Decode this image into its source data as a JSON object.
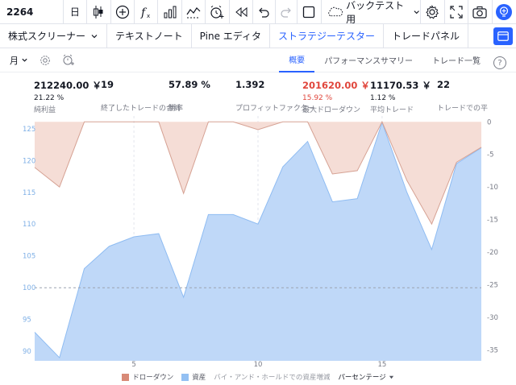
{
  "toolbar": {
    "symbol": "2264",
    "interval": "日",
    "backtest_label": "バックテスト用",
    "icons": [
      "candles-icon",
      "plus-circle-icon",
      "function-icon",
      "bar-chart-icon",
      "indicator-chart-icon",
      "alarm-plus-icon",
      "rewind-icon",
      "undo-icon",
      "redo-icon",
      "rectangle-icon",
      "cloud-icon",
      "gear-icon",
      "fullscreen-icon",
      "camera-icon",
      "lightbulb-icon"
    ]
  },
  "tabs": [
    {
      "label": "株式スクリーナー"
    },
    {
      "label": "テキストノート"
    },
    {
      "label": "Pine エディタ"
    },
    {
      "label": "ストラテジーテスター"
    },
    {
      "label": "トレードパネル"
    }
  ],
  "subbar": {
    "period": "月",
    "tabs": [
      "概要",
      "パフォーマンスサマリー",
      "トレード一覧"
    ],
    "help": "?"
  },
  "stats": [
    {
      "value": "212240.00 ￥",
      "pct": "21.22 %",
      "label": "純利益"
    },
    {
      "value": "19",
      "pct": "",
      "label": "終了したトレードの合計"
    },
    {
      "value": "57.89 %",
      "pct": "",
      "label": "勝率"
    },
    {
      "value": "1.392",
      "pct": "",
      "label": "プロフィットファクター"
    },
    {
      "value": "201620.00 ￥",
      "pct": "15.92 %",
      "label": "最大ドローダウン"
    },
    {
      "value": "11170.53 ￥",
      "pct": "1.12 %",
      "label": "平均トレード"
    },
    {
      "value": "22",
      "pct": "",
      "label": "トレードでの平"
    }
  ],
  "chart_data": {
    "type": "area",
    "x": [
      1,
      2,
      3,
      4,
      5,
      6,
      7,
      8,
      9,
      10,
      11,
      12,
      13,
      14,
      15,
      16,
      17,
      18,
      19
    ],
    "series": [
      {
        "name": "資産",
        "axis": "left",
        "values": [
          93,
          89,
          103,
          106.5,
          108,
          108.5,
          98.5,
          111.5,
          111.5,
          110,
          119,
          123,
          113.5,
          114,
          126,
          115,
          106,
          119.5,
          122
        ]
      },
      {
        "name": "ドローダウン",
        "axis": "right",
        "values": [
          -7,
          -10,
          0,
          0,
          0,
          0,
          -11,
          0,
          0,
          -1.2,
          0,
          0,
          -8,
          -7.5,
          0,
          -9,
          -15.7,
          -6.2,
          -3.9
        ]
      }
    ],
    "left_axis": {
      "ticks": [
        90,
        95,
        100,
        105,
        110,
        115,
        120,
        125
      ],
      "range": [
        88.5,
        127
      ]
    },
    "right_axis": {
      "ticks": [
        0,
        -5,
        -10,
        -15,
        -20,
        -25,
        -30,
        -35
      ],
      "range": [
        -36.7,
        0.9
      ]
    },
    "x_ticks": [
      5,
      10,
      15
    ],
    "baseline": 100,
    "colors": {
      "equity_fill": "#bfd8f8",
      "equity_line": "#8fbcf2",
      "drawdown_fill": "#f5ddd6",
      "drawdown_line": "#d6a294",
      "axis_text": "#7fb0e6",
      "right_text": "#787b86",
      "dash": "#9ba3b0"
    }
  },
  "legend": {
    "drawdown": "ドローダウン",
    "equity": "資産",
    "buy_hold": "バイ・アンド・ホールドでの資産増減",
    "mode": "パーセンテージ"
  }
}
